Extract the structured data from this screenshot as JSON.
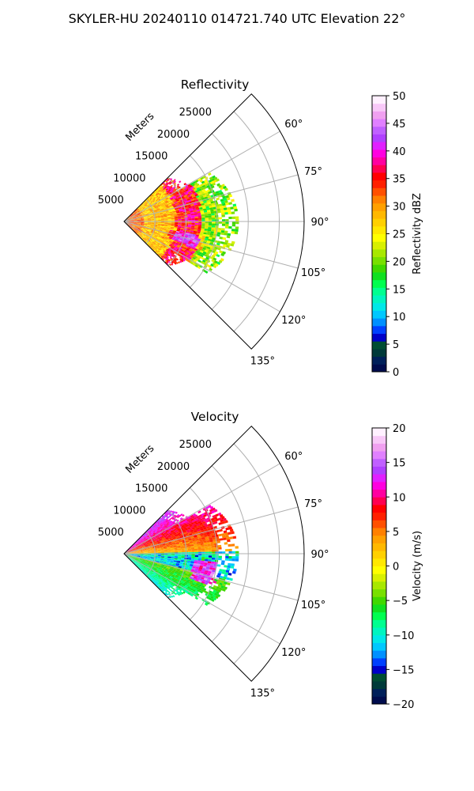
{
  "figure": {
    "title": "SKYLER-HU  20240110  014721.740 UTC Elevation 22°"
  },
  "chart_data": [
    {
      "type": "polar-sector-field",
      "title": "Reflectivity",
      "radial_axis_label": "Meters",
      "radial_ticks": [
        "5000",
        "10000",
        "15000",
        "20000",
        "25000"
      ],
      "angle_ticks": [
        "60°",
        "75°",
        "90°",
        "105°",
        "120°",
        "135°"
      ],
      "angle_range_deg": [
        45,
        135
      ],
      "r_max_m": 29000,
      "data_extent_m": 18500,
      "grid": true,
      "colorbar": {
        "label": "Reflectivity dBZ",
        "range": [
          0,
          50
        ],
        "ticks": [
          "0",
          "5",
          "10",
          "15",
          "20",
          "25",
          "30",
          "35",
          "40",
          "45",
          "50"
        ],
        "colors": [
          "#000c4d",
          "#00205a",
          "#003a3a",
          "#004d33",
          "#0000c8",
          "#0040ff",
          "#0090ff",
          "#00c8ff",
          "#00e8e8",
          "#00f5c0",
          "#00ff90",
          "#00ff50",
          "#10e020",
          "#40d800",
          "#78e000",
          "#a8e800",
          "#d8f000",
          "#ffff00",
          "#ffe800",
          "#ffd000",
          "#ffb800",
          "#ffa000",
          "#ff8000",
          "#ff5000",
          "#ff2000",
          "#ff0000",
          "#ff0050",
          "#ff00a0",
          "#ff00e0",
          "#e020ff",
          "#b040ff",
          "#c060ff",
          "#e080ff",
          "#f0a0f0",
          "#f8c8f8",
          "#fff0ff"
        ]
      }
    },
    {
      "type": "polar-sector-field",
      "title": "Velocity",
      "radial_axis_label": "Meters",
      "radial_ticks": [
        "5000",
        "10000",
        "15000",
        "20000",
        "25000"
      ],
      "angle_ticks": [
        "60°",
        "75°",
        "90°",
        "105°",
        "120°",
        "135°"
      ],
      "angle_range_deg": [
        45,
        135
      ],
      "r_max_m": 29000,
      "data_extent_m": 18500,
      "grid": true,
      "colorbar": {
        "label": "Velocity (m/s)",
        "range": [
          -20,
          20
        ],
        "ticks": [
          "−20",
          "−15",
          "−10",
          "−5",
          "0",
          "5",
          "10",
          "15",
          "20"
        ],
        "colors": [
          "#000c4d",
          "#00205a",
          "#003a3a",
          "#004d33",
          "#0000c8",
          "#0040ff",
          "#0090ff",
          "#00c8ff",
          "#00e8e8",
          "#00f5c0",
          "#00ff90",
          "#00ff50",
          "#10e020",
          "#40d800",
          "#78e000",
          "#a8e800",
          "#d8f000",
          "#ffff00",
          "#ffe800",
          "#ffd000",
          "#ffb800",
          "#ffa000",
          "#ff8000",
          "#ff5000",
          "#ff2000",
          "#ff0000",
          "#ff0050",
          "#ff00a0",
          "#ff00e0",
          "#e020ff",
          "#b040ff",
          "#c060ff",
          "#e080ff",
          "#f0a0f0",
          "#f8c8f8",
          "#fff0ff"
        ]
      }
    }
  ]
}
